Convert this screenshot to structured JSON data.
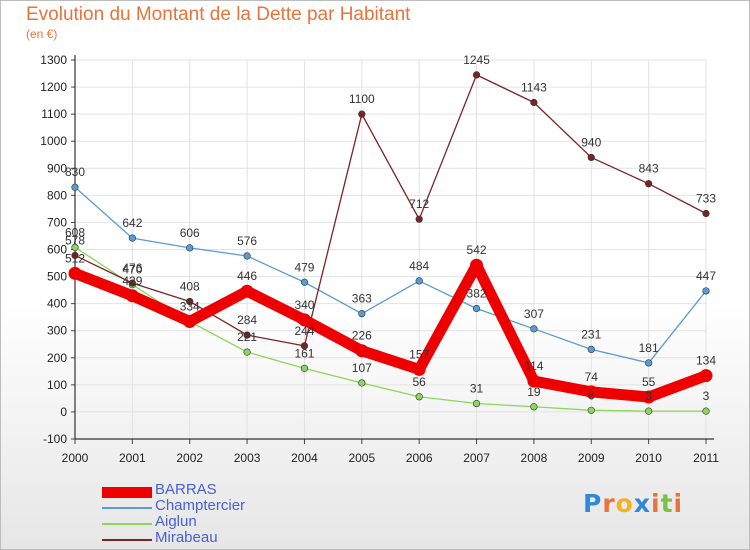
{
  "title": "Evolution du Montant de la Dette par Habitant",
  "subtitle": "(en €)",
  "logo_text": "Proxiti",
  "chart_data": {
    "type": "line",
    "title": "Evolution du Montant de la Dette par Habitant",
    "ylabel": "(en €)",
    "xlabel": "",
    "ylim": [
      -100,
      1300
    ],
    "yticks": [
      -100,
      0,
      100,
      200,
      300,
      400,
      500,
      600,
      700,
      800,
      900,
      1000,
      1100,
      1200,
      1300
    ],
    "x": [
      "2000",
      "2001",
      "2002",
      "2003",
      "2004",
      "2005",
      "2006",
      "2007",
      "2008",
      "2009",
      "2010",
      "2011"
    ],
    "grid": true,
    "legend_position": "bottom-left",
    "series": [
      {
        "name": "BARRAS",
        "color": "#ee0000",
        "values": [
          512,
          429,
          334,
          446,
          340,
          226,
          157,
          542,
          114,
          74,
          55,
          134
        ]
      },
      {
        "name": "Champtercier",
        "color": "#5b9bd5",
        "values": [
          830,
          642,
          606,
          576,
          479,
          363,
          484,
          382,
          307,
          231,
          181,
          447
        ]
      },
      {
        "name": "Aiglun",
        "color": "#8cd65a",
        "values": [
          608,
          470,
          334,
          221,
          161,
          107,
          56,
          31,
          19,
          6,
          3,
          3
        ]
      },
      {
        "name": "Mirabeau",
        "color": "#7a2424",
        "values": [
          578,
          476,
          408,
          284,
          244,
          1100,
          712,
          1245,
          1143,
          940,
          843,
          733
        ]
      }
    ],
    "value_labels": [
      {
        "series": "Champtercier",
        "values": [
          "830",
          "642",
          "606",
          "576",
          "479",
          "363",
          "484",
          "382",
          "307",
          "231",
          "181",
          "447"
        ]
      },
      {
        "series": "Aiglun",
        "values": [
          "608",
          "470",
          "",
          "221",
          "161",
          "107",
          "56",
          "31",
          "19",
          "6",
          "3",
          "3"
        ]
      },
      {
        "series": "Mirabeau",
        "values": [
          "578",
          "476",
          "408",
          "284",
          "244",
          "1100",
          "712",
          "1245",
          "1143",
          "940",
          "843",
          "733"
        ]
      },
      {
        "series": "BARRAS",
        "values": [
          "512",
          "429",
          "334",
          "446",
          "340",
          "226",
          "157",
          "542",
          "114",
          "74",
          "55",
          "134"
        ]
      }
    ]
  }
}
